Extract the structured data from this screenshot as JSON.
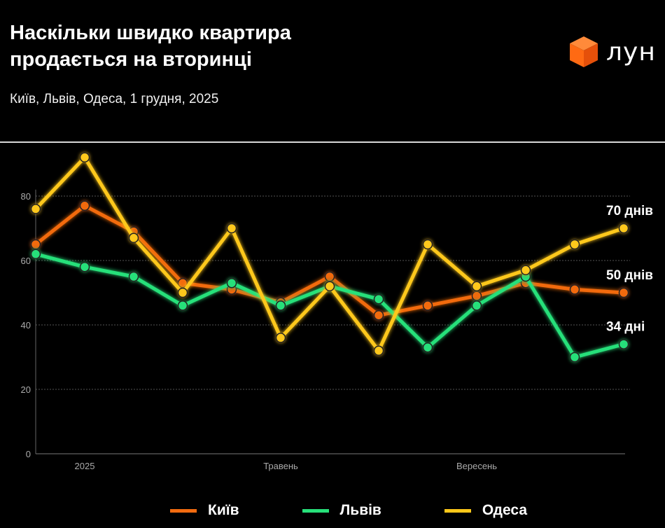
{
  "header": {
    "title": "Наскільки швидко квартира продається на вторинці",
    "subtitle": "Київ, Львів, Одеса, 1 грудня, 2025",
    "logo_text": "лун",
    "logo_color": "#ff6a13"
  },
  "chart_data": {
    "type": "line",
    "title": "Наскільки швидко квартира продається на вторинці",
    "subtitle": "Київ, Львів, Одеса, 1 грудня, 2025",
    "x": [
      0,
      1,
      2,
      3,
      4,
      5,
      6,
      7,
      8,
      9,
      10,
      11,
      12
    ],
    "x_tick_labels": [
      {
        "x": 1,
        "label": "2025"
      },
      {
        "x": 5,
        "label": "Травень"
      },
      {
        "x": 9,
        "label": "Вересень"
      }
    ],
    "y_ticks": [
      0,
      20,
      40,
      60,
      80
    ],
    "ylim": [
      0,
      92
    ],
    "grid": true,
    "legend": "bottom",
    "series": [
      {
        "name": "Київ",
        "color": "#f26b10",
        "values": [
          65,
          77,
          69,
          53,
          51,
          47,
          55,
          43,
          46,
          49,
          53,
          51,
          50
        ],
        "end_label": "50 днів"
      },
      {
        "name": "Львів",
        "color": "#27e07a",
        "values": [
          62,
          58,
          55,
          46,
          53,
          46,
          52,
          48,
          33,
          46,
          55,
          30,
          34
        ],
        "end_label": "34 дні"
      },
      {
        "name": "Одеса",
        "color": "#ffc81a",
        "values": [
          76,
          92,
          67,
          50,
          70,
          36,
          52,
          32,
          65,
          52,
          57,
          65,
          70
        ],
        "end_label": "70 днів"
      }
    ]
  }
}
